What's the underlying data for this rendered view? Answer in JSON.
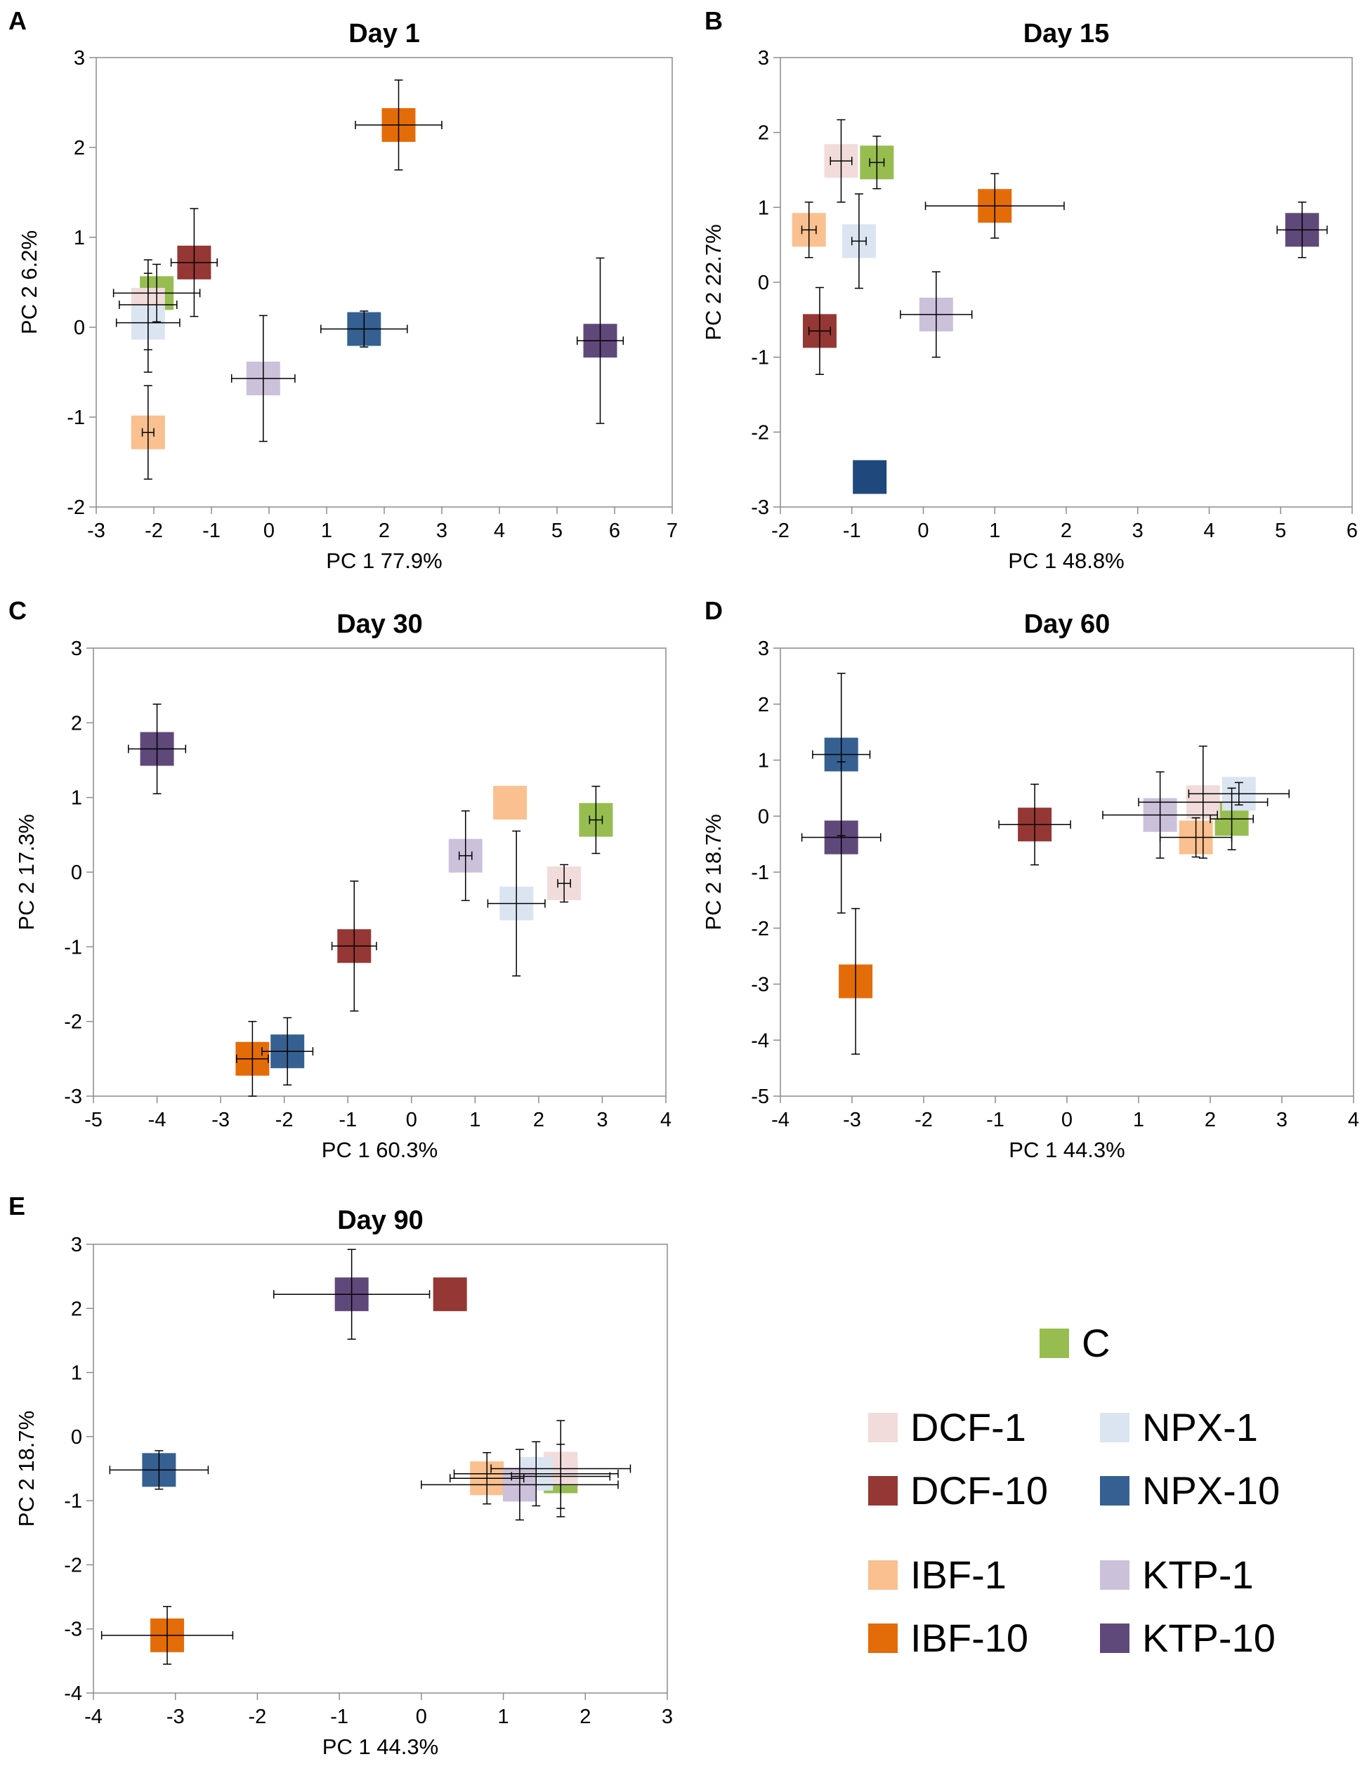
{
  "colors": {
    "C": "#97bd50",
    "DCF-1": "#f1dcdb",
    "DCF-10": "#953734",
    "NPX-1": "#dbe5f1",
    "NPX-10": "#366092",
    "IBF-1": "#fac090",
    "IBF-10": "#e36c09",
    "KTP-1": "#ccc1da",
    "KTP-10": "#5f497a",
    "NPX-10-day15": "#1f497d"
  },
  "legend": {
    "items": [
      {
        "key": "C",
        "label": "C"
      },
      {
        "key": "DCF-1",
        "label": "DCF-1"
      },
      {
        "key": "NPX-1",
        "label": "NPX-1"
      },
      {
        "key": "DCF-10",
        "label": "DCF-10"
      },
      {
        "key": "NPX-10",
        "label": "NPX-10"
      },
      {
        "key": "IBF-1",
        "label": "IBF-1"
      },
      {
        "key": "KTP-1",
        "label": "KTP-1"
      },
      {
        "key": "IBF-10",
        "label": "IBF-10"
      },
      {
        "key": "KTP-10",
        "label": "KTP-10"
      }
    ]
  },
  "chart_data": [
    {
      "type": "scatter",
      "panel": "A",
      "title": "Day 1",
      "xlabel": "PC 1  77.9%",
      "ylabel": "PC 2  6.2%",
      "xlim": [
        -3,
        7
      ],
      "ylim": [
        -2,
        3
      ],
      "xticks": [
        -3,
        -2,
        -1,
        0,
        1,
        2,
        3,
        4,
        5,
        6,
        7
      ],
      "yticks": [
        -2,
        -1,
        0,
        1,
        2,
        3
      ],
      "points": [
        {
          "group": "C",
          "x": -1.95,
          "y": 0.38,
          "xerr": 0.75,
          "yerr": 0.32
        },
        {
          "group": "DCF-1",
          "x": -2.1,
          "y": 0.25,
          "xerr": 0.5,
          "yerr": 0.5
        },
        {
          "group": "NPX-1",
          "x": -2.1,
          "y": 0.05,
          "xerr": 0.55,
          "yerr": 0.55
        },
        {
          "group": "DCF-10",
          "x": -1.3,
          "y": 0.72,
          "xerr": 0.4,
          "yerr": 0.6
        },
        {
          "group": "IBF-1",
          "x": -2.1,
          "y": -1.17,
          "xerr": 0.1,
          "yerr": 0.52
        },
        {
          "group": "KTP-1",
          "x": -0.1,
          "y": -0.57,
          "xerr": 0.55,
          "yerr": 0.7
        },
        {
          "group": "IBF-10",
          "x": 2.25,
          "y": 2.25,
          "xerr": 0.75,
          "yerr": 0.5
        },
        {
          "group": "NPX-10",
          "x": 1.65,
          "y": -0.02,
          "xerr": 0.75,
          "yerr": 0.2
        },
        {
          "group": "KTP-10",
          "x": 5.75,
          "y": -0.15,
          "xerr": 0.4,
          "yerr": 0.92
        }
      ]
    },
    {
      "type": "scatter",
      "panel": "B",
      "title": "Day 15",
      "xlabel": "PC 1  48.8%",
      "ylabel": "PC 2  22.7%",
      "xlim": [
        -2,
        6
      ],
      "ylim": [
        -3,
        3
      ],
      "xticks": [
        -2,
        -1,
        0,
        1,
        2,
        3,
        4,
        5,
        6
      ],
      "yticks": [
        -3,
        -2,
        -1,
        0,
        1,
        2,
        3
      ],
      "points": [
        {
          "group": "DCF-1",
          "x": -1.15,
          "y": 1.62,
          "xerr": 0.15,
          "yerr": 0.55
        },
        {
          "group": "C",
          "x": -0.65,
          "y": 1.6,
          "xerr": 0.1,
          "yerr": 0.35
        },
        {
          "group": "IBF-1",
          "x": -1.6,
          "y": 0.7,
          "xerr": 0.1,
          "yerr": 0.37
        },
        {
          "group": "NPX-1",
          "x": -0.9,
          "y": 0.55,
          "xerr": 0.1,
          "yerr": 0.63
        },
        {
          "group": "DCF-10",
          "x": -1.45,
          "y": -0.65,
          "xerr": 0.15,
          "yerr": 0.58
        },
        {
          "group": "KTP-1",
          "x": 0.18,
          "y": -0.43,
          "xerr": 0.5,
          "yerr": 0.57
        },
        {
          "group": "IBF-10",
          "x": 1.0,
          "y": 1.02,
          "xerr": 0.97,
          "yerr": 0.43
        },
        {
          "group": "KTP-10",
          "x": 5.3,
          "y": 0.7,
          "xerr": 0.35,
          "yerr": 0.37
        },
        {
          "group": "NPX-10-day15",
          "x": -0.75,
          "y": -2.6,
          "xerr": 0,
          "yerr": 0
        }
      ]
    },
    {
      "type": "scatter",
      "panel": "C",
      "title": "Day 30",
      "xlabel": "PC 1  60.3%",
      "ylabel": "PC 2  17.3%",
      "xlim": [
        -5,
        4
      ],
      "ylim": [
        -3,
        3
      ],
      "xticks": [
        -5,
        -4,
        -3,
        -2,
        -1,
        0,
        1,
        2,
        3,
        4
      ],
      "yticks": [
        -3,
        -2,
        -1,
        0,
        1,
        2,
        3
      ],
      "points": [
        {
          "group": "KTP-10",
          "x": -4.0,
          "y": 1.65,
          "xerr": 0.45,
          "yerr": 0.6
        },
        {
          "group": "IBF-1",
          "x": 1.55,
          "y": 0.93,
          "xerr": 0,
          "yerr": 0
        },
        {
          "group": "C",
          "x": 2.9,
          "y": 0.7,
          "xerr": 0.1,
          "yerr": 0.45
        },
        {
          "group": "KTP-1",
          "x": 0.85,
          "y": 0.22,
          "xerr": 0.1,
          "yerr": 0.6
        },
        {
          "group": "DCF-1",
          "x": 2.4,
          "y": -0.15,
          "xerr": 0.1,
          "yerr": 0.25
        },
        {
          "group": "NPX-1",
          "x": 1.65,
          "y": -0.42,
          "xerr": 0.45,
          "yerr": 0.97
        },
        {
          "group": "DCF-10",
          "x": -0.9,
          "y": -0.99,
          "xerr": 0.35,
          "yerr": 0.87
        },
        {
          "group": "IBF-10",
          "x": -2.5,
          "y": -2.5,
          "xerr": 0.25,
          "yerr": 0.5
        },
        {
          "group": "NPX-10",
          "x": -1.95,
          "y": -2.4,
          "xerr": 0.4,
          "yerr": 0.45
        }
      ]
    },
    {
      "type": "scatter",
      "panel": "D",
      "title": "Day 60",
      "xlabel": "PC 1  44.3%",
      "ylabel": "PC 2  18.7%",
      "xlim": [
        -4,
        4
      ],
      "ylim": [
        -5,
        3
      ],
      "xticks": [
        -4,
        -3,
        -2,
        -1,
        0,
        1,
        2,
        3,
        4
      ],
      "yticks": [
        -5,
        -4,
        -3,
        -2,
        -1,
        0,
        1,
        2,
        3
      ],
      "points": [
        {
          "group": "NPX-10",
          "x": -3.15,
          "y": 1.1,
          "xerr": 0.4,
          "yerr": 1.45
        },
        {
          "group": "KTP-10",
          "x": -3.15,
          "y": -0.38,
          "xerr": 0.55,
          "yerr": 1.35
        },
        {
          "group": "IBF-10",
          "x": -2.95,
          "y": -2.95,
          "xerr": 0,
          "yerr": 1.3
        },
        {
          "group": "DCF-10",
          "x": -0.45,
          "y": -0.15,
          "xerr": 0.5,
          "yerr": 0.72
        },
        {
          "group": "C",
          "x": 2.3,
          "y": -0.05,
          "xerr": 0.3,
          "yerr": 0.55
        },
        {
          "group": "KTP-1",
          "x": 1.3,
          "y": 0.02,
          "xerr": 0.8,
          "yerr": 0.77
        },
        {
          "group": "DCF-1",
          "x": 1.9,
          "y": 0.25,
          "xerr": 0.9,
          "yerr": 1.0
        },
        {
          "group": "NPX-1",
          "x": 2.4,
          "y": 0.4,
          "xerr": 0.7,
          "yerr": 0.2
        },
        {
          "group": "IBF-1",
          "x": 1.8,
          "y": -0.38,
          "xerr": 0.5,
          "yerr": 0.35
        }
      ]
    },
    {
      "type": "scatter",
      "panel": "E",
      "title": "Day 90",
      "xlabel": "PC 1  44.3%",
      "ylabel": "PC 2  18.7%",
      "xlim": [
        -4,
        3
      ],
      "ylim": [
        -4,
        3
      ],
      "xticks": [
        -4,
        -3,
        -2,
        -1,
        0,
        1,
        2,
        3
      ],
      "yticks": [
        -4,
        -3,
        -2,
        -1,
        0,
        1,
        2,
        3
      ],
      "points": [
        {
          "group": "KTP-10",
          "x": -0.85,
          "y": 2.22,
          "xerr": 0.95,
          "yerr": 0.7
        },
        {
          "group": "DCF-10",
          "x": 0.35,
          "y": 2.22,
          "xerr": 0,
          "yerr": 0
        },
        {
          "group": "NPX-10",
          "x": -3.2,
          "y": -0.52,
          "xerr": 0.6,
          "yerr": 0.3
        },
        {
          "group": "IBF-10",
          "x": -3.1,
          "y": -3.1,
          "xerr": 0.8,
          "yerr": 0.45
        },
        {
          "group": "C",
          "x": 1.7,
          "y": -0.62,
          "xerr": 0.6,
          "yerr": 0.5
        },
        {
          "group": "DCF-1",
          "x": 1.7,
          "y": -0.5,
          "xerr": 0.85,
          "yerr": 0.75
        },
        {
          "group": "NPX-1",
          "x": 1.4,
          "y": -0.58,
          "xerr": 1.0,
          "yerr": 0.5
        },
        {
          "group": "IBF-1",
          "x": 0.8,
          "y": -0.65,
          "xerr": 0.45,
          "yerr": 0.4
        },
        {
          "group": "KTP-1",
          "x": 1.2,
          "y": -0.75,
          "xerr": 1.2,
          "yerr": 0.55
        }
      ]
    }
  ]
}
